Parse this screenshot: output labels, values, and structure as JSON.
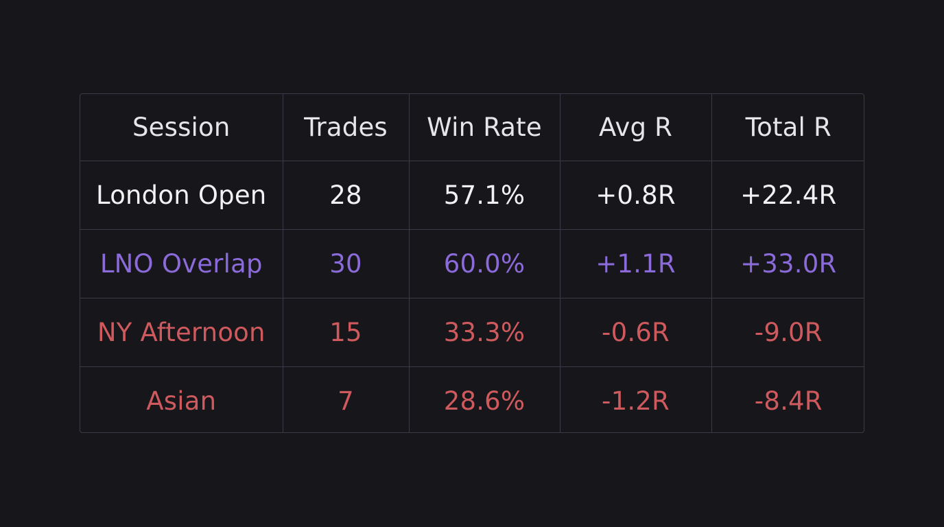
{
  "colors": {
    "background": "#17161b",
    "grid_line": "#3a3b47",
    "header_text": "#e6e6ea",
    "neutral_text": "#f2f2f4",
    "highlight_purple": "#8b6ad9",
    "negative_red": "#cf5a5e"
  },
  "chart_data": {
    "type": "table",
    "columns": [
      "Session",
      "Trades",
      "Win Rate",
      "Avg R",
      "Total R"
    ],
    "rows": [
      {
        "session": "London Open",
        "trades": "28",
        "win_rate": "57.1%",
        "avg_r": "+0.8R",
        "total_r": "+22.4R",
        "color": "#f2f2f4"
      },
      {
        "session": "LNO Overlap",
        "trades": "30",
        "win_rate": "60.0%",
        "avg_r": "+1.1R",
        "total_r": "+33.0R",
        "color": "#8b6ad9"
      },
      {
        "session": "NY Afternoon",
        "trades": "15",
        "win_rate": "33.3%",
        "avg_r": "-0.6R",
        "total_r": "-9.0R",
        "color": "#cf5a5e"
      },
      {
        "session": "Asian",
        "trades": "7",
        "win_rate": "28.6%",
        "avg_r": "-1.2R",
        "total_r": "-8.4R",
        "color": "#cf5a5e"
      }
    ]
  }
}
